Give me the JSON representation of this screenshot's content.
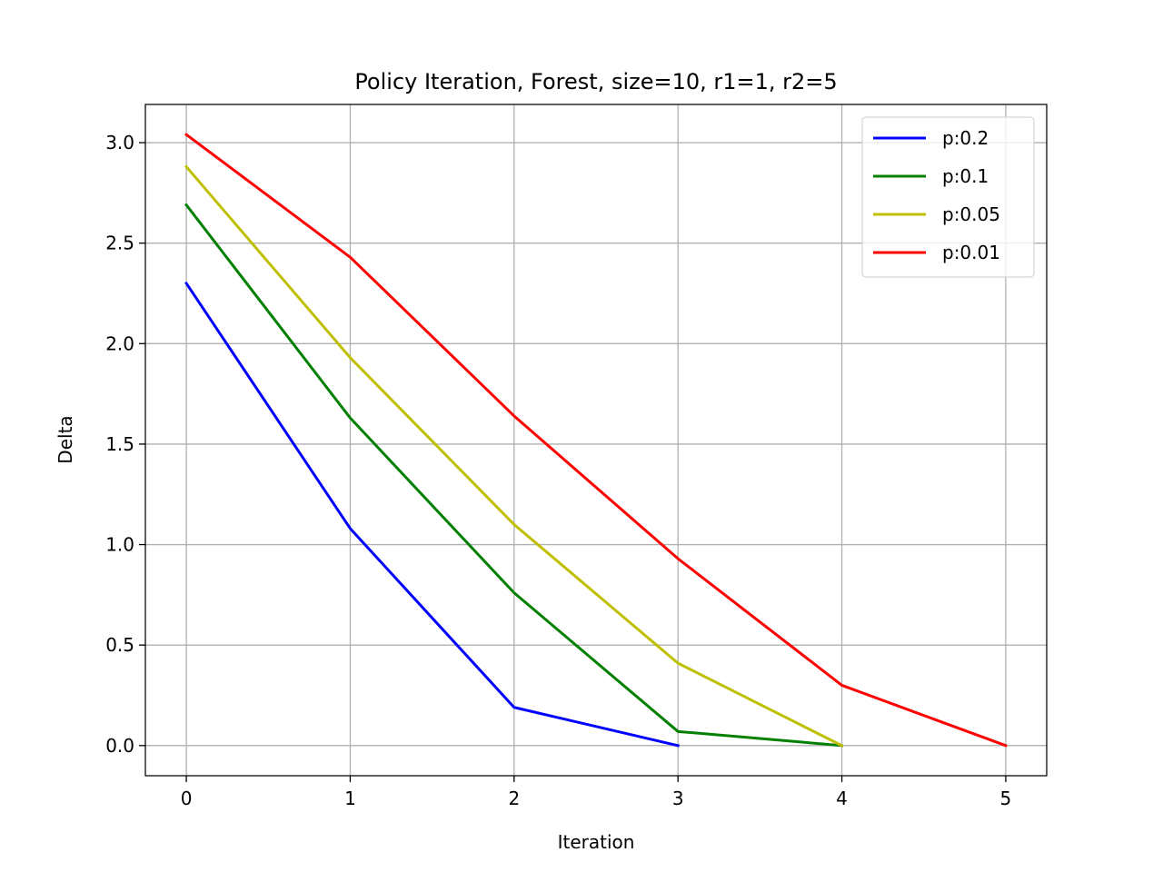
{
  "chart_data": {
    "type": "line",
    "title": "Policy Iteration, Forest, size=10, r1=1, r2=5",
    "xlabel": "Iteration",
    "ylabel": "Delta",
    "xlim": [
      -0.25,
      5.25
    ],
    "ylim": [
      -0.15,
      3.19
    ],
    "xticks": [
      0,
      1,
      2,
      3,
      4,
      5
    ],
    "xtick_labels": [
      "0",
      "1",
      "2",
      "3",
      "4",
      "5"
    ],
    "yticks": [
      0.0,
      0.5,
      1.0,
      1.5,
      2.0,
      2.5,
      3.0
    ],
    "ytick_labels": [
      "0.0",
      "0.5",
      "1.0",
      "1.5",
      "2.0",
      "2.5",
      "3.0"
    ],
    "grid": true,
    "legend_position": "top-right",
    "series": [
      {
        "name": "p:0.2",
        "color": "#0000ff",
        "x": [
          0,
          1,
          2,
          3
        ],
        "y": [
          2.3,
          1.08,
          0.19,
          0.0
        ]
      },
      {
        "name": "p:0.1",
        "color": "#008000",
        "x": [
          0,
          1,
          2,
          3,
          4
        ],
        "y": [
          2.69,
          1.63,
          0.76,
          0.07,
          0.0
        ]
      },
      {
        "name": "p:0.05",
        "color": "#bfbf00",
        "x": [
          0,
          1,
          2,
          3,
          4
        ],
        "y": [
          2.88,
          1.93,
          1.1,
          0.41,
          0.0
        ]
      },
      {
        "name": "p:0.01",
        "color": "#ff0000",
        "x": [
          0,
          1,
          2,
          3,
          4,
          5
        ],
        "y": [
          3.04,
          2.43,
          1.64,
          0.93,
          0.3,
          0.0
        ]
      }
    ]
  }
}
